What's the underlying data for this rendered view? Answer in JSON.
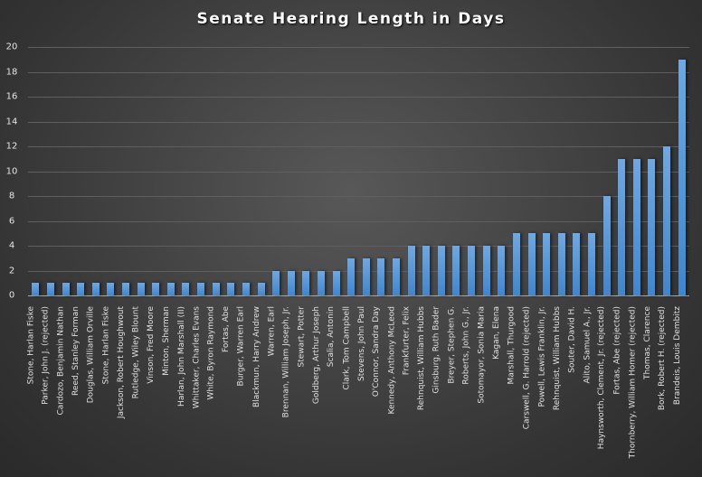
{
  "chart_data": {
    "type": "bar",
    "title": "Senate Hearing Length in Days",
    "xlabel": "",
    "ylabel": "",
    "ylim": [
      0,
      20
    ],
    "yticks": [
      0,
      2,
      4,
      6,
      8,
      10,
      12,
      14,
      16,
      18,
      20
    ],
    "grid": true,
    "legend": null,
    "bar_color": "#4a90d9",
    "background_color": "#3a3a3a",
    "categories": [
      "Stone, Harlan Fiske",
      "Parker, John J. (rejected)",
      "Cardozo, Benjamin Nathan",
      "Reed, Stanley Forman",
      "Douglas, William Orville",
      "Stone, Harlan Fiske",
      "Jackson, Robert Houghwout",
      "Rutledge, Wiley Blount",
      "Vinson, Fred Moore",
      "Minton, Sherman",
      "Harlan, John Marshall (II)",
      "Whittaker, Charles Evans",
      "White, Byron Raymond",
      "Fortas, Abe",
      "Burger, Warren Earl",
      "Blackmun, Harry Andrew",
      "Warren, Earl",
      "Brennan, William Joseph, Jr.",
      "Stewart, Potter",
      "Goldberg, Arthur Joseph",
      "Scalia, Antonin",
      "Clark, Tom Campbell",
      "Stevens, John Paul",
      "O'Connor, Sandra Day",
      "Kennedy, Anthony McLeod",
      "Frankfurter, Felix",
      "Rehnquist, William Hubbs",
      "Ginsburg, Ruth Bader",
      "Breyer, Stephen G.",
      "Roberts, John G., Jr.",
      "Sotomayor, Sonia Maria",
      "Kagan, Elena",
      "Marshall, Thurgood",
      "Carswell, G. Harrold (rejected)",
      "Powell, Lewis Franklin, Jr.",
      "Rehnquist, William Hubbs",
      "Souter, David H.",
      "Alito, Samuel A., Jr.",
      "Haynsworth, Clement, Jr. (rejected)",
      "Fortas, Abe (rejected)",
      "Thornberry, William Homer (rejected)",
      "Thomas, Clarence",
      "Bork, Robert H. (rejected)",
      "Brandeis, Louis Dembitz"
    ],
    "values": [
      1,
      1,
      1,
      1,
      1,
      1,
      1,
      1,
      1,
      1,
      1,
      1,
      1,
      1,
      1,
      1,
      2,
      2,
      2,
      2,
      2,
      3,
      3,
      3,
      3,
      4,
      4,
      4,
      4,
      4,
      4,
      4,
      5,
      5,
      5,
      5,
      5,
      5,
      8,
      11,
      11,
      11,
      12,
      19
    ]
  }
}
